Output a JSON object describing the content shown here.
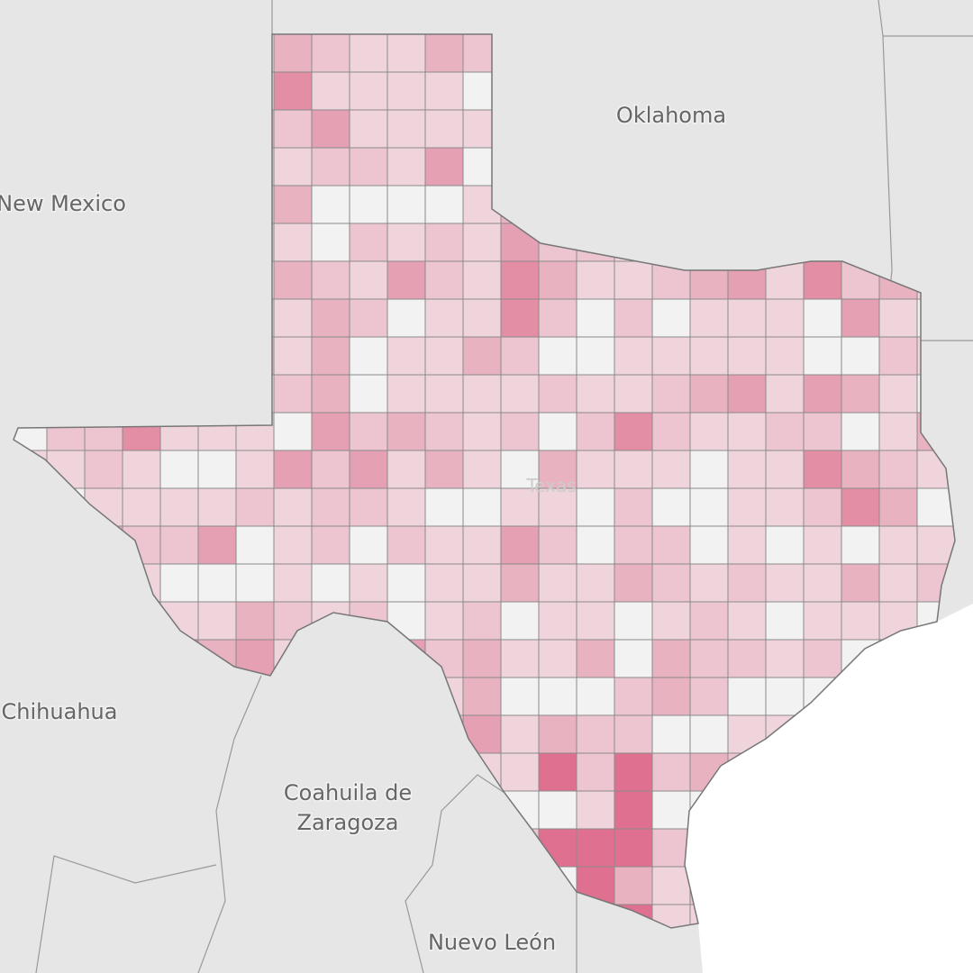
{
  "map": {
    "labels": {
      "oklahoma": "Oklahoma",
      "new_mexico": "New Mexico",
      "chihuahua": "Chihuahua",
      "coahuila": [
        "Coahuila de",
        "Zaragoza"
      ],
      "nuevo_leon": "Nuevo León",
      "texas": "Texas"
    }
  }
}
